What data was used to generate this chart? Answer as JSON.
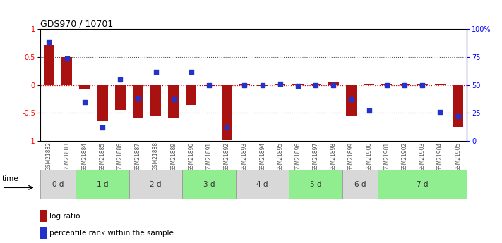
{
  "title": "GDS970 / 10701",
  "samples": [
    "GSM21882",
    "GSM21883",
    "GSM21884",
    "GSM21885",
    "GSM21886",
    "GSM21887",
    "GSM21888",
    "GSM21889",
    "GSM21890",
    "GSM21891",
    "GSM21892",
    "GSM21893",
    "GSM21894",
    "GSM21895",
    "GSM21896",
    "GSM21897",
    "GSM21898",
    "GSM21899",
    "GSM21900",
    "GSM21901",
    "GSM21902",
    "GSM21903",
    "GSM21904",
    "GSM21905"
  ],
  "log_ratio": [
    0.72,
    0.5,
    -0.07,
    -0.65,
    -0.45,
    -0.6,
    -0.55,
    -0.58,
    -0.35,
    -0.02,
    -0.98,
    0.02,
    -0.02,
    0.02,
    0.02,
    0.02,
    0.05,
    -0.55,
    0.02,
    0.02,
    0.02,
    0.02,
    0.02,
    -0.75
  ],
  "percentile": [
    88,
    74,
    35,
    12,
    55,
    38,
    62,
    37,
    62,
    50,
    12,
    50,
    50,
    51,
    49,
    50,
    50,
    37,
    27,
    50,
    50,
    50,
    26,
    22
  ],
  "time_groups": [
    {
      "label": "0 d",
      "start": 0,
      "end": 2,
      "color": "#d8d8d8"
    },
    {
      "label": "1 d",
      "start": 2,
      "end": 5,
      "color": "#90ee90"
    },
    {
      "label": "2 d",
      "start": 5,
      "end": 8,
      "color": "#d8d8d8"
    },
    {
      "label": "3 d",
      "start": 8,
      "end": 11,
      "color": "#90ee90"
    },
    {
      "label": "4 d",
      "start": 11,
      "end": 14,
      "color": "#d8d8d8"
    },
    {
      "label": "5 d",
      "start": 14,
      "end": 17,
      "color": "#90ee90"
    },
    {
      "label": "6 d",
      "start": 17,
      "end": 19,
      "color": "#d8d8d8"
    },
    {
      "label": "7 d",
      "start": 19,
      "end": 24,
      "color": "#90ee90"
    }
  ],
  "bar_color": "#aa1111",
  "dot_color": "#2233cc",
  "ylim": [
    -1,
    1
  ],
  "right_ylim": [
    0,
    100
  ],
  "right_yticks": [
    0,
    25,
    50,
    75,
    100
  ],
  "right_yticklabels": [
    "0",
    "25",
    "50",
    "75",
    "100%"
  ],
  "left_yticks": [
    -1,
    -0.5,
    0,
    0.5,
    1
  ],
  "left_yticklabels": [
    "-1",
    "-0.5",
    "0",
    "0.5",
    "1"
  ],
  "hline_0_color": "#cc0000",
  "hline_dotted_color": "#555555",
  "legend_logratio": "log ratio",
  "legend_percentile": "percentile rank within the sample",
  "sample_label_color": "#555555",
  "time_label_color": "#333333"
}
